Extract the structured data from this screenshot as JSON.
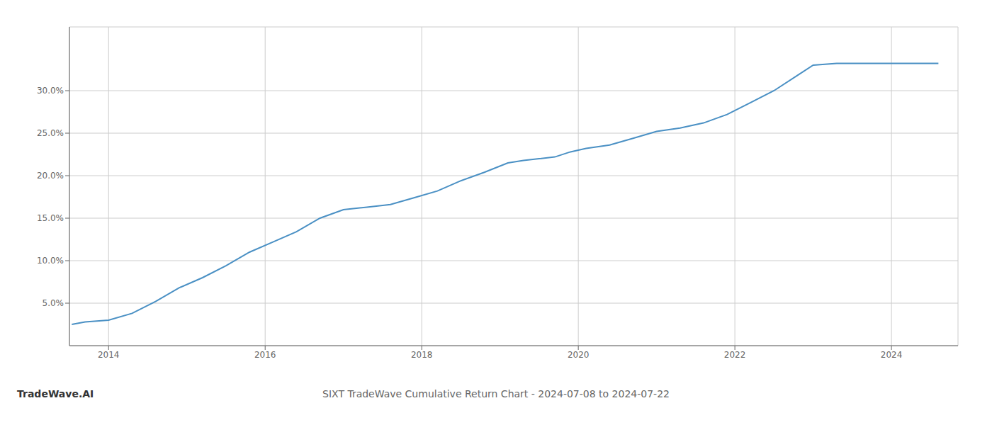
{
  "chart_data": {
    "type": "line",
    "title": "SIXT TradeWave Cumulative Return Chart - 2024-07-08 to 2024-07-22",
    "annotations": [
      "TradeWave.AI"
    ],
    "x": [
      2013.53,
      2013.7,
      2014.0,
      2014.3,
      2014.6,
      2014.9,
      2015.2,
      2015.5,
      2015.8,
      2016.1,
      2016.4,
      2016.7,
      2017.0,
      2017.3,
      2017.6,
      2017.9,
      2018.2,
      2018.5,
      2018.8,
      2019.1,
      2019.3,
      2019.5,
      2019.7,
      2019.9,
      2020.1,
      2020.4,
      2020.7,
      2021.0,
      2021.3,
      2021.6,
      2021.9,
      2022.2,
      2022.5,
      2022.8,
      2023.0,
      2023.3,
      2023.55,
      2024.0,
      2024.6
    ],
    "values": [
      0.025,
      0.028,
      0.03,
      0.038,
      0.052,
      0.068,
      0.08,
      0.094,
      0.11,
      0.122,
      0.134,
      0.15,
      0.16,
      0.163,
      0.166,
      0.174,
      0.182,
      0.194,
      0.204,
      0.215,
      0.218,
      0.22,
      0.222,
      0.228,
      0.232,
      0.236,
      0.244,
      0.252,
      0.256,
      0.262,
      0.272,
      0.286,
      0.3,
      0.318,
      0.33,
      0.332,
      0.332,
      0.332,
      0.332
    ],
    "color": "#4a90c4",
    "xlim": [
      2013.5,
      2024.85
    ],
    "ylim": [
      0.0,
      0.375
    ],
    "xticks": [
      2014,
      2016,
      2018,
      2020,
      2022,
      2024
    ],
    "yticks": [
      {
        "value": 0.05,
        "label": "5.0%"
      },
      {
        "value": 0.1,
        "label": "10.0%"
      },
      {
        "value": 0.15,
        "label": "15.0%"
      },
      {
        "value": 0.2,
        "label": "20.0%"
      },
      {
        "value": 0.25,
        "label": "25.0%"
      },
      {
        "value": 0.3,
        "label": "30.0%"
      }
    ],
    "grid": true
  }
}
